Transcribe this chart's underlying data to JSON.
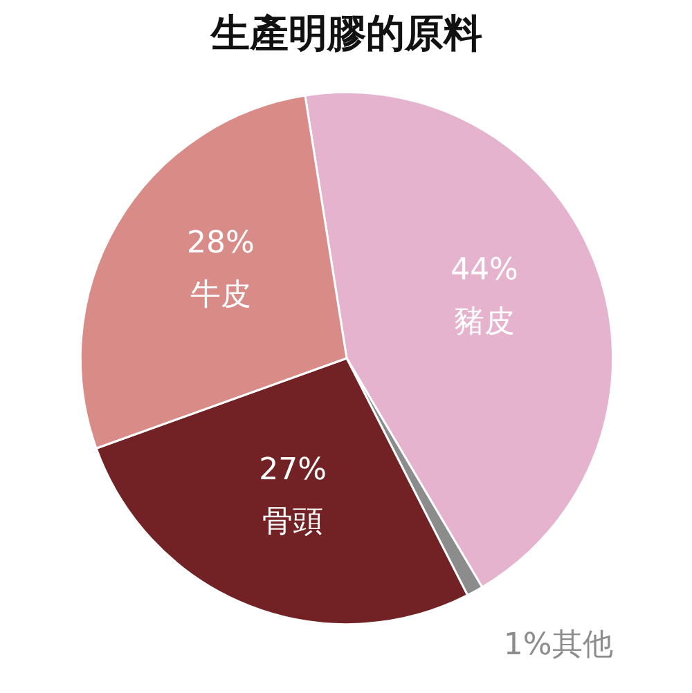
{
  "chart_data": {
    "type": "pie",
    "title": "生產明膠的原料",
    "categories": [
      "豬皮",
      "其他",
      "骨頭",
      "牛皮"
    ],
    "values": [
      44,
      1,
      27,
      28
    ],
    "colors": [
      "#e5b3cd",
      "#8c8c8c",
      "#722224",
      "#d98b88"
    ],
    "value_labels": [
      "44%",
      "1%",
      "27%",
      "28%"
    ]
  }
}
